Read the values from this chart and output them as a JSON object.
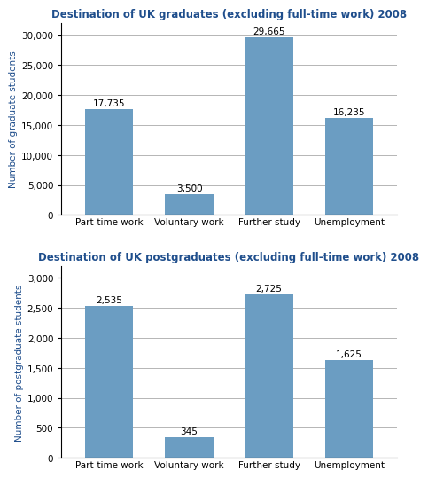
{
  "grad_title": "Destination of UK graduates (excluding full-time work) 2008",
  "postgrad_title": "Destination of UK postgraduates (excluding full-time work) 2008",
  "categories": [
    "Part-time work",
    "Voluntary work",
    "Further study",
    "Unemployment"
  ],
  "grad_values": [
    17735,
    3500,
    29665,
    16235
  ],
  "postgrad_values": [
    2535,
    345,
    2725,
    1625
  ],
  "grad_labels": [
    "17,735",
    "3,500",
    "29,665",
    "16,235"
  ],
  "postgrad_labels": [
    "2,535",
    "345",
    "2,725",
    "1,625"
  ],
  "bar_color": "#6B9DC2",
  "grad_ylabel": "Number of graduate students",
  "postgrad_ylabel": "Number of postgraduate students",
  "grad_ylim": [
    0,
    32000
  ],
  "postgrad_ylim": [
    0,
    3200
  ],
  "grad_yticks": [
    0,
    5000,
    10000,
    15000,
    20000,
    25000,
    30000
  ],
  "postgrad_yticks": [
    0,
    500,
    1000,
    1500,
    2000,
    2500,
    3000
  ],
  "title_color": "#1F4E8C",
  "ylabel_color": "#1F4E8C",
  "title_fontsize": 8.5,
  "label_fontsize": 7.5,
  "ylabel_fontsize": 7.5,
  "tick_fontsize": 7.5,
  "bar_width": 0.6
}
